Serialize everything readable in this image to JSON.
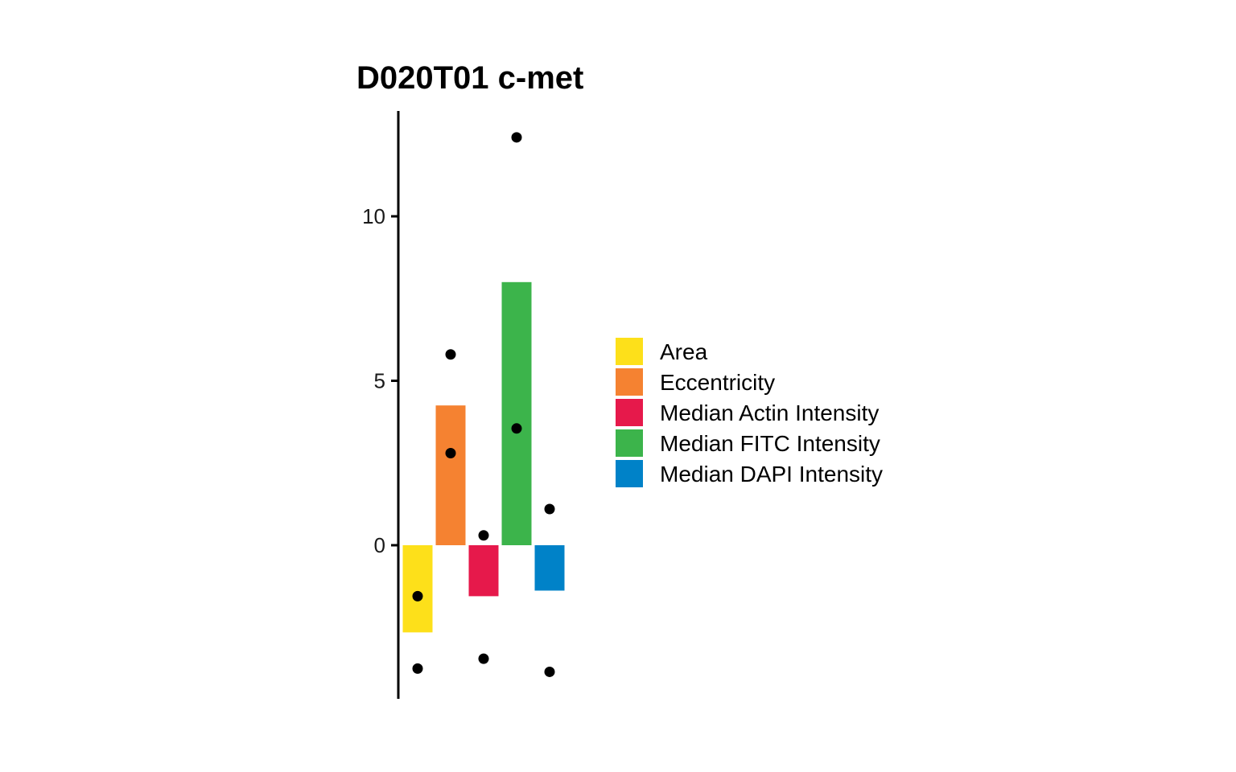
{
  "chart_data": {
    "type": "bar",
    "title": "D020T01 c-met",
    "xlabel": "",
    "ylabel": "",
    "ylim": [
      -4.6,
      13.2
    ],
    "yticks": [
      0,
      5,
      10
    ],
    "grid": false,
    "legend_position": "right",
    "series": [
      {
        "name": "Area",
        "color": "#FDE01A",
        "value": -2.65,
        "points": [
          -1.55,
          -3.75
        ]
      },
      {
        "name": "Eccentricity",
        "color": "#F58231",
        "value": 4.25,
        "points": [
          5.8,
          2.8
        ]
      },
      {
        "name": "Median Actin Intensity",
        "color": "#E6194B",
        "value": -1.55,
        "points": [
          0.3,
          -3.45
        ]
      },
      {
        "name": "Median FITC Intensity",
        "color": "#3CB44B",
        "value": 8.0,
        "points": [
          12.4,
          3.55
        ]
      },
      {
        "name": "Median DAPI Intensity",
        "color": "#0082C8",
        "value": -1.38,
        "points": [
          1.1,
          -3.85
        ]
      }
    ]
  }
}
